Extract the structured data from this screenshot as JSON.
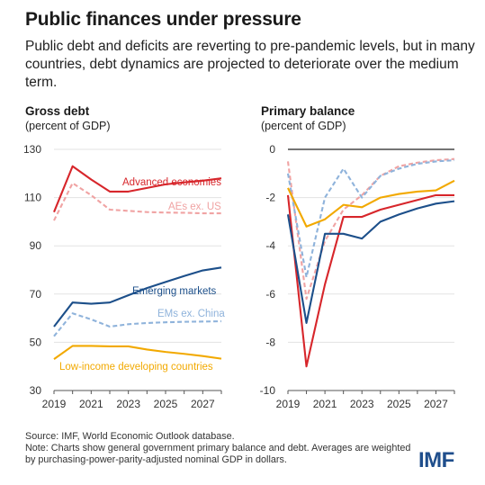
{
  "header": {
    "title": "Public finances under pressure",
    "subtitle": "Public debt and deficits are reverting to pre-pandemic levels, but in many countries, debt dynamics are projected to deteriorate over the medium term."
  },
  "footer": {
    "source": "Source: IMF, World Economic Outlook database.",
    "note": "Note: Charts show general government primary balance and debt. Averages are weighted by purchasing-power-parity-adjusted nominal GDP in dollars."
  },
  "logo_text": "IMF",
  "colors": {
    "advanced": "#d7262b",
    "aes_ex_us": "#f0a3a3",
    "emerging": "#1c4f8a",
    "ems_ex_china": "#8fb3db",
    "lic": "#f2a900"
  },
  "chart_data": [
    {
      "type": "line",
      "title": "Gross debt",
      "ylabel": "(percent of GDP)",
      "x": [
        2019,
        2020,
        2021,
        2022,
        2023,
        2024,
        2025,
        2026,
        2027,
        2028
      ],
      "xticks": [
        "2019",
        "2021",
        "2023",
        "2025",
        "2027"
      ],
      "yticks": [
        "130",
        "110",
        "90",
        "70",
        "50",
        "30"
      ],
      "ylim": [
        30,
        130
      ],
      "xlim": [
        2019,
        2028
      ],
      "series": [
        {
          "name": "Advanced economies",
          "style": "solid",
          "color_key": "advanced",
          "values": [
            104,
            123,
            117.5,
            112.5,
            112.5,
            114,
            115.5,
            116.3,
            117,
            118
          ]
        },
        {
          "name": "AEs ex. US",
          "style": "dashed",
          "color_key": "aes_ex_us",
          "values": [
            100.5,
            116,
            111,
            105,
            104.5,
            104,
            103.8,
            103.7,
            103.5,
            103.5
          ]
        },
        {
          "name": "Emerging markets",
          "style": "solid",
          "color_key": "emerging",
          "values": [
            56.5,
            66.5,
            66,
            66.5,
            69.5,
            72.5,
            75,
            77.5,
            79.8,
            81
          ]
        },
        {
          "name": "EMs ex. China",
          "style": "dashed",
          "color_key": "ems_ex_china",
          "values": [
            52.5,
            62,
            59.5,
            56.5,
            57.5,
            58,
            58.3,
            58.5,
            58.6,
            58.7
          ]
        },
        {
          "name": "Low-income developing countries",
          "style": "solid",
          "color_key": "lic",
          "values": [
            43,
            48.5,
            48.5,
            48.3,
            48.3,
            47,
            46,
            45.2,
            44.3,
            43.2
          ]
        }
      ]
    },
    {
      "type": "line",
      "title": "Primary balance",
      "ylabel": "(percent of GDP)",
      "x": [
        2019,
        2020,
        2021,
        2022,
        2023,
        2024,
        2025,
        2026,
        2027,
        2028
      ],
      "xticks": [
        "2019",
        "2021",
        "2023",
        "2025",
        "2027"
      ],
      "yticks": [
        "0",
        "-2",
        "-4",
        "-6",
        "-8",
        "-10"
      ],
      "ylim": [
        -10,
        0
      ],
      "xlim": [
        2019,
        2028
      ],
      "series": [
        {
          "name": "Advanced economies",
          "style": "solid",
          "color_key": "advanced",
          "values": [
            -1.9,
            -9.0,
            -5.6,
            -2.8,
            -2.8,
            -2.5,
            -2.3,
            -2.1,
            -1.9,
            -1.9
          ]
        },
        {
          "name": "AEs ex. US",
          "style": "dashed",
          "color_key": "aes_ex_us",
          "values": [
            -0.5,
            -6.2,
            -3.8,
            -2.5,
            -1.9,
            -1.1,
            -0.7,
            -0.55,
            -0.45,
            -0.4
          ]
        },
        {
          "name": "Emerging markets",
          "style": "solid",
          "color_key": "emerging",
          "values": [
            -2.7,
            -7.2,
            -3.5,
            -3.5,
            -3.7,
            -3.0,
            -2.7,
            -2.45,
            -2.25,
            -2.15
          ]
        },
        {
          "name": "EMs ex. China",
          "style": "dashed",
          "color_key": "ems_ex_china",
          "values": [
            -1.0,
            -5.3,
            -2.0,
            -0.8,
            -2.0,
            -1.1,
            -0.8,
            -0.6,
            -0.5,
            -0.45
          ]
        },
        {
          "name": "Low-income developing countries",
          "style": "solid",
          "color_key": "lic",
          "values": [
            -1.6,
            -3.2,
            -2.9,
            -2.3,
            -2.4,
            -2.0,
            -1.85,
            -1.75,
            -1.7,
            -1.3
          ]
        }
      ]
    }
  ]
}
